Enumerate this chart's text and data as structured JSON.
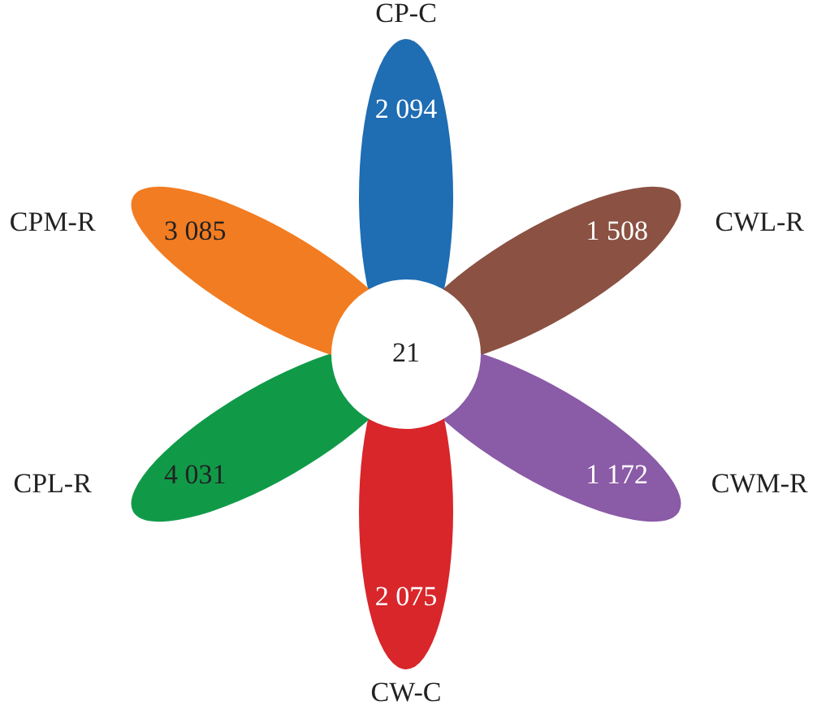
{
  "chart_data": {
    "type": "other",
    "categories": [
      "CP-C",
      "CWL-R",
      "CWM-R",
      "CW-C",
      "CPL-R",
      "CPM-R"
    ],
    "values": [
      2094,
      1508,
      1172,
      2075,
      4031,
      3085
    ],
    "data_labels": true,
    "colors": [
      "#1f6db3",
      "#8b5143",
      "#8a5ba6",
      "#d8262b",
      "#109a48",
      "#f27c21"
    ],
    "annotations": [
      "21"
    ]
  }
}
